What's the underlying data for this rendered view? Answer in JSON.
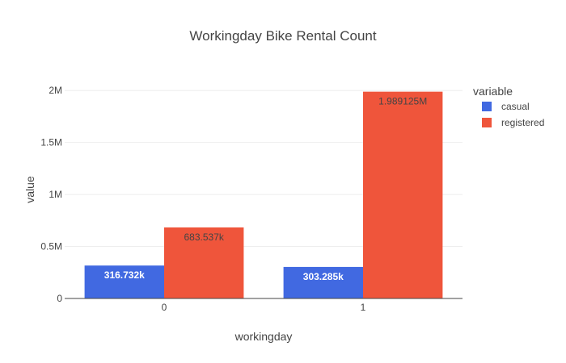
{
  "chart_data": {
    "type": "bar",
    "title": "Workingday Bike Rental Count",
    "xlabel": "workingday",
    "ylabel": "value",
    "categories": [
      "0",
      "1"
    ],
    "ylim": [
      0,
      2095000
    ],
    "yticks": [
      0,
      500000,
      1000000,
      1500000,
      2000000
    ],
    "ytick_labels": [
      "0",
      "0.5M",
      "1M",
      "1.5M",
      "2M"
    ],
    "grid": true,
    "legend_position": "right",
    "legend_title": "variable",
    "series": [
      {
        "name": "casual",
        "color": "#4169e1",
        "values": [
          316732,
          303285
        ],
        "labels": [
          "316.732k",
          "303.285k"
        ],
        "label_color": "#ffffff"
      },
      {
        "name": "registered",
        "color": "#ef553b",
        "values": [
          683537,
          1989125
        ],
        "labels": [
          "683.537k",
          "1.989125M"
        ],
        "label_color": "#444444"
      }
    ]
  }
}
